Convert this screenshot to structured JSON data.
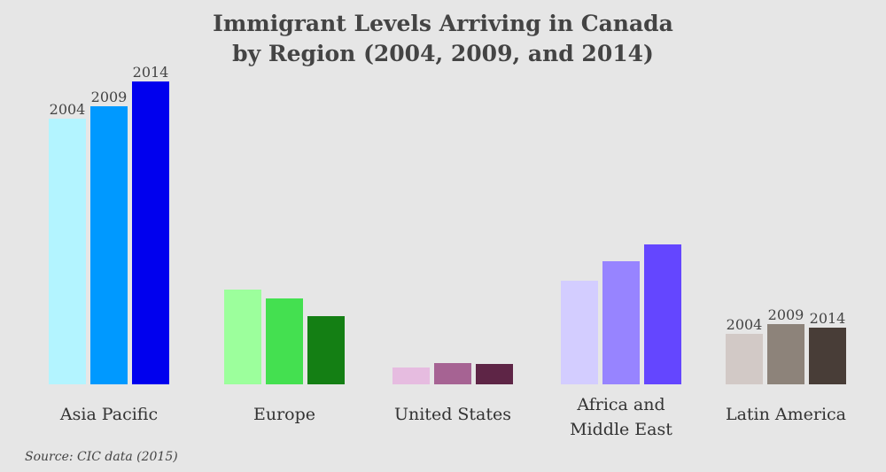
{
  "chart_data": {
    "type": "bar",
    "title_lines": [
      "Immigrant Levels Arriving in Canada",
      "by Region (2004, 2009, and 2014)"
    ],
    "categories": [
      [
        "Asia Pacific"
      ],
      [
        "Europe"
      ],
      [
        "United States"
      ],
      [
        "Africa and",
        "Middle East"
      ],
      [
        "Latin America"
      ]
    ],
    "series_labels": [
      "2004",
      "2009",
      "2014"
    ],
    "values": [
      [
        300,
        314,
        342
      ],
      [
        107,
        97,
        77
      ],
      [
        19,
        24,
        23
      ],
      [
        117,
        139,
        158
      ],
      [
        57,
        68,
        64
      ]
    ],
    "colors": [
      [
        "#b3f4ff",
        "#0099ff",
        "#0000ee"
      ],
      [
        "#9cff9c",
        "#44e050",
        "#147f14"
      ],
      [
        "#e6bce0",
        "#a66393",
        "#5e2546"
      ],
      [
        "#d3cdff",
        "#9784ff",
        "#6446ff"
      ],
      [
        "#d2c9c6",
        "#8d837a",
        "#483d37"
      ]
    ],
    "year_labels_shown_for": [
      0,
      4
    ],
    "ylim": [
      0,
      342
    ],
    "source": "Source: CIC data (2015)"
  }
}
